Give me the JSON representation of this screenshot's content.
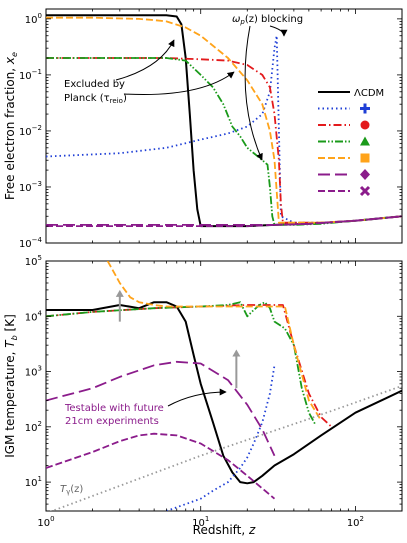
{
  "chart_data": [
    {
      "type": "line",
      "panel": "top",
      "ylabel": "Free electron fraction, x_e",
      "ylabel_parts": [
        "Free electron fraction, ",
        "x",
        "e"
      ],
      "xscale": "log",
      "yscale": "log",
      "xlim": [
        1,
        200
      ],
      "ylim": [
        0.0001,
        1.5
      ],
      "yticks": [
        {
          "v": 1,
          "b": "10",
          "e": "0"
        },
        {
          "v": 0.1,
          "b": "10",
          "e": "−1"
        },
        {
          "v": 0.01,
          "b": "10",
          "e": "−2"
        },
        {
          "v": 0.001,
          "b": "10",
          "e": "−3"
        },
        {
          "v": 0.0001,
          "b": "10",
          "e": "−4"
        }
      ],
      "annotations": {
        "excluded": [
          "Excluded by",
          "Planck (τ",
          "reio",
          ")"
        ],
        "blocking": [
          "ω",
          "p",
          "(z) blocking"
        ]
      },
      "legend": {
        "placement": "right",
        "entries": [
          {
            "label": "ΛCDM",
            "color": "#000000",
            "marker": ""
          },
          {
            "label": "",
            "color": "#1f3fd6",
            "marker": "plus"
          },
          {
            "label": "",
            "color": "#e31a1c",
            "marker": "circle"
          },
          {
            "label": "",
            "color": "#1a9a1a",
            "marker": "triangle"
          },
          {
            "label": "",
            "color": "#ffa31a",
            "marker": "square"
          },
          {
            "label": "",
            "color": "#8b1c8b",
            "marker": "diamond"
          },
          {
            "label": "",
            "color": "#8b1c8b",
            "marker": "x"
          }
        ]
      },
      "series": [
        {
          "style": "solid",
          "color": "#000000",
          "x": [
            1,
            2,
            4,
            6,
            7,
            7.5,
            8,
            8.5,
            9,
            9.5,
            10,
            20,
            30,
            50,
            100,
            200
          ],
          "y": [
            1.16,
            1.16,
            1.16,
            1.16,
            1.1,
            0.8,
            0.2,
            0.02,
            0.002,
            0.0004,
            0.0002,
            0.0002,
            0.00021,
            0.00022,
            0.00025,
            0.0003
          ]
        },
        {
          "style": "dotted",
          "color": "#1f3fd6",
          "x": [
            1,
            3,
            6,
            10,
            15,
            20,
            25,
            28,
            30,
            31,
            33,
            40,
            60,
            100,
            200
          ],
          "y": [
            0.0035,
            0.004,
            0.005,
            0.007,
            0.009,
            0.012,
            0.02,
            0.05,
            0.3,
            0.5,
            0.0003,
            0.00023,
            0.00023,
            0.00025,
            0.0003
          ]
        },
        {
          "style": "dashdot",
          "color": "#e31a1c",
          "x": [
            1,
            3,
            6,
            10,
            15,
            20,
            25,
            28,
            30,
            32,
            33,
            34,
            40,
            60,
            100,
            200
          ],
          "y": [
            0.2,
            0.2,
            0.2,
            0.19,
            0.18,
            0.15,
            0.1,
            0.06,
            0.02,
            0.003,
            0.0005,
            0.00023,
            0.00023,
            0.00023,
            0.00025,
            0.0003
          ]
        },
        {
          "style": "dashdotdot",
          "color": "#1a9a1a",
          "x": [
            1,
            4,
            6,
            8,
            10,
            12,
            14,
            16,
            18,
            20,
            25,
            27,
            28,
            29,
            30,
            40,
            60,
            100,
            200
          ],
          "y": [
            0.2,
            0.2,
            0.2,
            0.18,
            0.1,
            0.06,
            0.03,
            0.012,
            0.008,
            0.005,
            0.003,
            0.0025,
            0.001,
            0.0003,
            0.00021,
            0.00021,
            0.00022,
            0.00025,
            0.0003
          ]
        },
        {
          "style": "dashed",
          "color": "#ffa31a",
          "x": [
            1,
            2,
            4,
            5,
            6,
            8,
            10,
            15,
            20,
            25,
            28,
            30,
            32,
            40,
            60,
            100,
            200
          ],
          "y": [
            1.05,
            1.05,
            1.0,
            0.95,
            0.9,
            0.7,
            0.5,
            0.2,
            0.08,
            0.03,
            0.01,
            0.003,
            0.00023,
            0.00023,
            0.00023,
            0.00025,
            0.0003
          ]
        },
        {
          "style": "longdash",
          "color": "#8b1c8b",
          "x": [
            1,
            5,
            10,
            20,
            30,
            50,
            100,
            200
          ],
          "y": [
            0.00021,
            0.00021,
            0.00021,
            0.00021,
            0.00021,
            0.00022,
            0.00025,
            0.0003
          ]
        },
        {
          "style": "dashed",
          "color": "#8b1c8b",
          "x": [
            1,
            5,
            10,
            20,
            30,
            50,
            100,
            200
          ],
          "y": [
            0.0002,
            0.0002,
            0.0002,
            0.0002,
            0.00021,
            0.00022,
            0.00025,
            0.0003
          ]
        }
      ]
    },
    {
      "type": "line",
      "panel": "bottom",
      "xlabel": "Redshift, z",
      "xlabel_parts": [
        "Redshift, ",
        "z"
      ],
      "ylabel": "IGM temperature, T_b [K]",
      "ylabel_parts": [
        "IGM temperature, ",
        "T",
        "b",
        " [K]"
      ],
      "xscale": "log",
      "yscale": "log",
      "xlim": [
        1,
        200
      ],
      "ylim": [
        3,
        100000
      ],
      "xticks": [
        {
          "v": 1,
          "b": "10",
          "e": "0"
        },
        {
          "v": 10,
          "b": "10",
          "e": "1"
        },
        {
          "v": 100,
          "b": "10",
          "e": "2"
        }
      ],
      "yticks": [
        {
          "v": 100000,
          "b": "10",
          "e": "5"
        },
        {
          "v": 10000,
          "b": "10",
          "e": "4"
        },
        {
          "v": 1000,
          "b": "10",
          "e": "3"
        },
        {
          "v": 100,
          "b": "10",
          "e": "2"
        },
        {
          "v": 10,
          "b": "10",
          "e": "1"
        }
      ],
      "annotations": {
        "testable": [
          "Testable with future",
          "21cm experiments"
        ],
        "tgamma": [
          "T",
          "γ",
          "(z)"
        ]
      },
      "arrows": [
        {
          "x": 3,
          "y_from": 8000,
          "y_to": 30000,
          "color": "#999999"
        },
        {
          "x": 17,
          "y_from": 500,
          "y_to": 2500,
          "color": "#999999"
        }
      ],
      "series": [
        {
          "style": "solid",
          "color": "#000000",
          "x": [
            1,
            2,
            3,
            4,
            5,
            6,
            7,
            8,
            9,
            10,
            12,
            14,
            16,
            18,
            20,
            22,
            25,
            30,
            40,
            60,
            100,
            200
          ],
          "y": [
            13000,
            13000,
            16000,
            14000,
            18000,
            18000,
            15000,
            8000,
            2000,
            600,
            120,
            30,
            15,
            10,
            9.5,
            10,
            13,
            20,
            32,
            70,
            180,
            450
          ]
        },
        {
          "style": "dotted",
          "color": "#1f3fd6",
          "x": [
            6,
            8,
            10,
            12,
            15,
            18,
            20,
            22,
            25,
            28,
            30
          ],
          "y": [
            3,
            4,
            5,
            7,
            10,
            18,
            28,
            50,
            120,
            400,
            1300
          ]
        },
        {
          "style": "dashdot",
          "color": "#e31a1c",
          "x": [
            1,
            2,
            5,
            10,
            20,
            30,
            34,
            40,
            50,
            60,
            70
          ],
          "y": [
            10000,
            12000,
            14000,
            15000,
            16000,
            16000,
            16000,
            3000,
            400,
            150,
            100
          ]
        },
        {
          "style": "dashdotdot",
          "color": "#1a9a1a",
          "x": [
            1,
            2,
            5,
            10,
            15,
            18,
            20,
            22,
            24,
            26,
            28,
            30,
            35,
            40,
            45,
            50,
            55
          ],
          "y": [
            10000,
            12000,
            14000,
            15000,
            16000,
            18000,
            10000,
            13000,
            16000,
            18000,
            14000,
            8000,
            6000,
            3000,
            500,
            180,
            110
          ]
        },
        {
          "style": "dashed",
          "color": "#ffa31a",
          "x": [
            2.5,
            3,
            3.5,
            4,
            5,
            6,
            8,
            10,
            15,
            20,
            30,
            35,
            40,
            50,
            60
          ],
          "y": [
            100000,
            40000,
            22000,
            18000,
            16000,
            15000,
            15000,
            15000,
            15000,
            15000,
            15000,
            15000,
            3000,
            300,
            130
          ]
        },
        {
          "style": "longdash",
          "color": "#8b1c8b",
          "x": [
            1,
            2,
            3,
            5,
            7,
            10,
            15,
            20,
            25,
            30
          ],
          "y": [
            300,
            500,
            800,
            1300,
            1500,
            1400,
            700,
            250,
            90,
            30
          ]
        },
        {
          "style": "dashed",
          "color": "#8b1c8b",
          "x": [
            1,
            2,
            3,
            4,
            5,
            7,
            10,
            15,
            20,
            30
          ],
          "y": [
            18,
            35,
            55,
            70,
            75,
            70,
            50,
            25,
            13,
            5
          ]
        },
        {
          "style": "dotted",
          "color": "#999999",
          "x": [
            1,
            10,
            50,
            100,
            200
          ],
          "y": [
            2.725,
            30,
            139,
            275,
            550
          ]
        }
      ]
    }
  ]
}
